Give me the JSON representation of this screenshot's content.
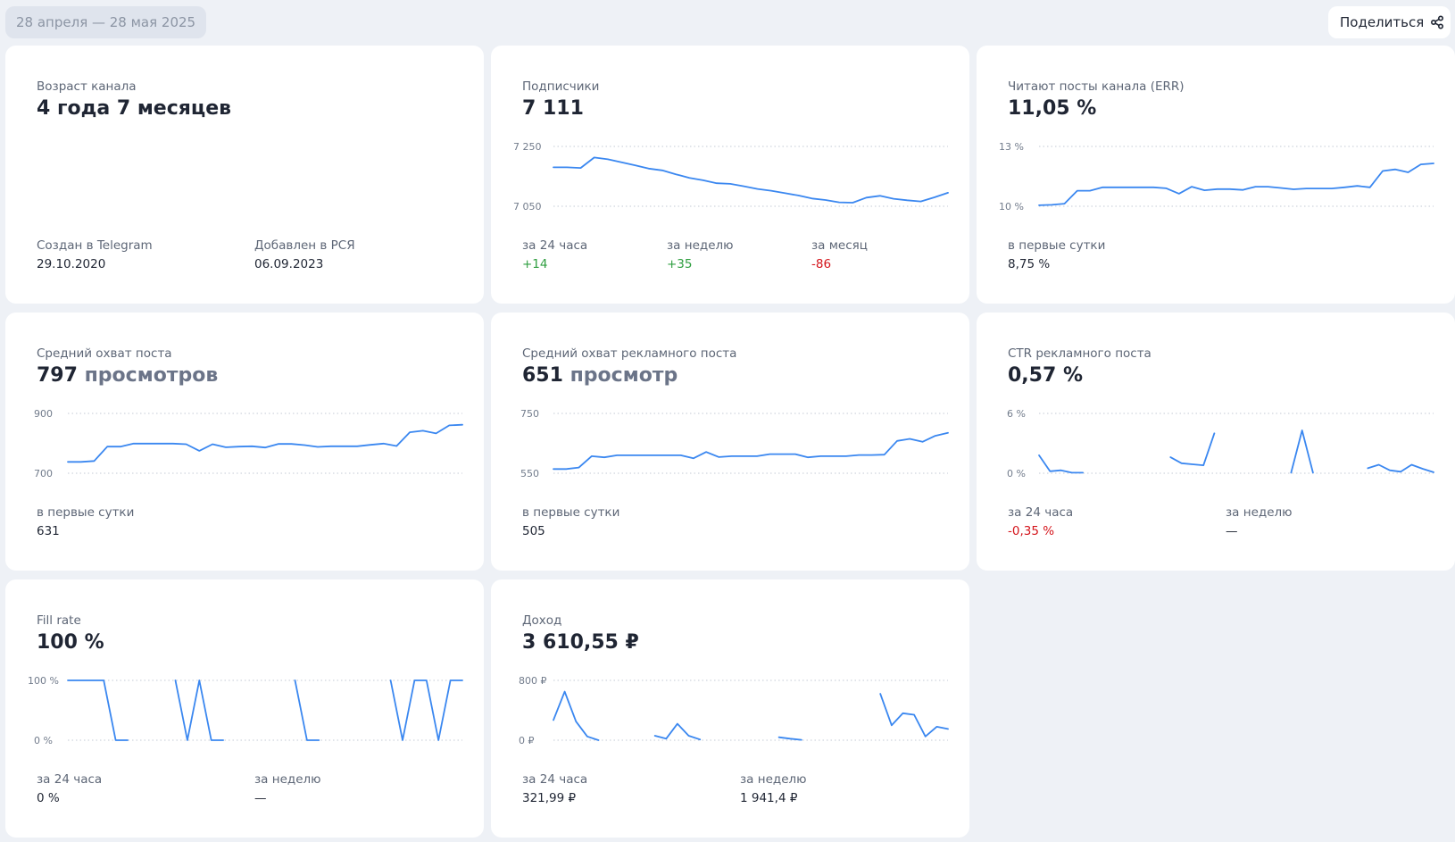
{
  "header": {
    "date_range": "28 апреля — 28 мая 2025",
    "share_label": "Поделиться",
    "share_icon": "share-icon"
  },
  "cards": [
    {
      "title": "Возраст канала",
      "value": "4 года 7 месяцев",
      "stats": [
        {
          "label": "Создан в Telegram",
          "value": "29.10.2020",
          "status": "neutral"
        },
        {
          "label": "Добавлен в РСЯ",
          "value": "06.09.2023",
          "status": "neutral"
        }
      ]
    },
    {
      "title": "Подписчики",
      "value": "7 111",
      "chart": {
        "max_label": "7 250",
        "min_label": "7 050"
      },
      "stats": [
        {
          "label": "за 24 часа",
          "value": "+14",
          "status": "positive"
        },
        {
          "label": "за неделю",
          "value": "+35",
          "status": "positive"
        },
        {
          "label": "за месяц",
          "value": "-86",
          "status": "negative"
        }
      ]
    },
    {
      "title": "Читают посты канала (ERR)",
      "value": "11,05 %",
      "chart": {
        "max_label": "13 %",
        "min_label": "10 %"
      },
      "stats": [
        {
          "label": "в первые сутки",
          "value": "8,75 %",
          "status": "neutral"
        }
      ]
    },
    {
      "title": "Средний охват поста",
      "value": "797",
      "value_unit": "просмотров",
      "chart": {
        "max_label": "900",
        "min_label": "700"
      },
      "stats": [
        {
          "label": "в первые сутки",
          "value": "631",
          "status": "neutral"
        }
      ]
    },
    {
      "title": "Средний охват рекламного поста",
      "value": "651",
      "value_unit": "просмотр",
      "chart": {
        "max_label": "750",
        "min_label": "550"
      },
      "stats": [
        {
          "label": "в первые сутки",
          "value": "505",
          "status": "neutral"
        }
      ]
    },
    {
      "title": "CTR рекламного поста",
      "value": "0,57 %",
      "chart": {
        "max_label": "6 %",
        "min_label": "0 %"
      },
      "stats": [
        {
          "label": "за 24 часа",
          "value": "-0,35 %",
          "status": "negative"
        },
        {
          "label": "за неделю",
          "value": "—",
          "status": "neutral"
        }
      ]
    },
    {
      "title": "Fill rate",
      "value": "100 %",
      "chart": {
        "max_label": "100 %",
        "min_label": "0 %"
      },
      "stats": [
        {
          "label": "за 24 часа",
          "value": "0 %",
          "status": "neutral"
        },
        {
          "label": "за неделю",
          "value": "—",
          "status": "neutral"
        }
      ]
    },
    {
      "title": "Доход",
      "value": "3 610,55 ₽",
      "chart": {
        "max_label": "800 ₽",
        "min_label": "0 ₽"
      },
      "stats": [
        {
          "label": "за 24 часа",
          "value": "321,99 ₽",
          "status": "neutral"
        },
        {
          "label": "за неделю",
          "value": "1 941,4 ₽",
          "status": "neutral"
        }
      ]
    }
  ],
  "colors": {
    "background": "#eef1f6",
    "card": "#ffffff",
    "line": "#3a87f0",
    "positive": "#2e9e3f",
    "negative": "#d4141b"
  },
  "chart_data": [
    {
      "type": "line",
      "series": [
        {
          "values": [
            7180,
            7180,
            7178,
            7213,
            7207,
            7197,
            7187,
            7176,
            7170,
            7157,
            7145,
            7137,
            7127,
            7125,
            7117,
            7108,
            7102,
            7094,
            7086,
            7076,
            7071,
            7063,
            7062,
            7079,
            7085,
            7075,
            7070,
            7066,
            7080,
            7095
          ]
        }
      ],
      "ylim": [
        7050,
        7250
      ],
      "y_ticks": [
        "7 250",
        "7 050"
      ]
    },
    {
      "type": "line",
      "series": [
        {
          "values": [
            10.05,
            10.07,
            10.13,
            10.78,
            10.78,
            10.95,
            10.95,
            10.95,
            10.95,
            10.95,
            10.9,
            10.63,
            10.98,
            10.8,
            10.86,
            10.86,
            10.82,
            10.98,
            10.98,
            10.92,
            10.85,
            10.89,
            10.89,
            10.89,
            10.95,
            11.02,
            10.95,
            11.77,
            11.85,
            11.7,
            12.1,
            12.15
          ]
        }
      ],
      "ylim": [
        10,
        13
      ],
      "y_ticks": [
        "13 %",
        "10 %"
      ]
    },
    {
      "type": "line",
      "series": [
        {
          "values": [
            738,
            738,
            741,
            789,
            789,
            799,
            799,
            799,
            799,
            797,
            775,
            797,
            787,
            789,
            790,
            786,
            798,
            798,
            794,
            788,
            790,
            790,
            790,
            795,
            799,
            791,
            837,
            842,
            833,
            860,
            862
          ]
        }
      ],
      "ylim": [
        700,
        900
      ],
      "y_ticks": [
        "900",
        "700"
      ]
    },
    {
      "type": "line",
      "series": [
        {
          "values": [
            564,
            564,
            569,
            607,
            603,
            610,
            610,
            610,
            610,
            610,
            610,
            600,
            621,
            604,
            607,
            607,
            607,
            614,
            614,
            614,
            603,
            607,
            607,
            607,
            611,
            611,
            612,
            658,
            665,
            655,
            675,
            685
          ]
        }
      ],
      "ylim": [
        550,
        750
      ],
      "y_ticks": [
        "750",
        "550"
      ]
    },
    {
      "type": "line",
      "series": [
        {
          "values": [
            1.8,
            0.2,
            0.3,
            0.05,
            0.05,
            null,
            null,
            null,
            null,
            null,
            null,
            null,
            1.6,
            1.0,
            0.9,
            0.8,
            4.0,
            null,
            null,
            null,
            null,
            null,
            null,
            0.05,
            4.3,
            0.05,
            null,
            null,
            null,
            null,
            0.5,
            0.85,
            0.3,
            0.15,
            0.85,
            0.45,
            0.1
          ]
        }
      ],
      "ylim": [
        0,
        6
      ],
      "y_ticks": [
        "6 %",
        "0 %"
      ]
    },
    {
      "type": "line",
      "series": [
        {
          "values": [
            100,
            100,
            100,
            100,
            0,
            0,
            null,
            null,
            null,
            100,
            0,
            100,
            0,
            0,
            null,
            null,
            null,
            null,
            null,
            100,
            0,
            0,
            null,
            null,
            null,
            null,
            null,
            100,
            0,
            100,
            100,
            0,
            100,
            100
          ]
        }
      ],
      "ylim": [
        0,
        100
      ],
      "y_ticks": [
        "100 %",
        "0 %"
      ]
    },
    {
      "type": "line",
      "series": [
        {
          "values": [
            270,
            650,
            250,
            50,
            0,
            null,
            null,
            null,
            null,
            60,
            20,
            220,
            60,
            10,
            null,
            null,
            null,
            null,
            null,
            null,
            40,
            20,
            5,
            null,
            null,
            null,
            null,
            null,
            null,
            620,
            200,
            360,
            340,
            50,
            180,
            150
          ]
        }
      ],
      "ylim": [
        0,
        800
      ],
      "y_ticks": [
        "800 ₽",
        "0 ₽"
      ]
    }
  ]
}
